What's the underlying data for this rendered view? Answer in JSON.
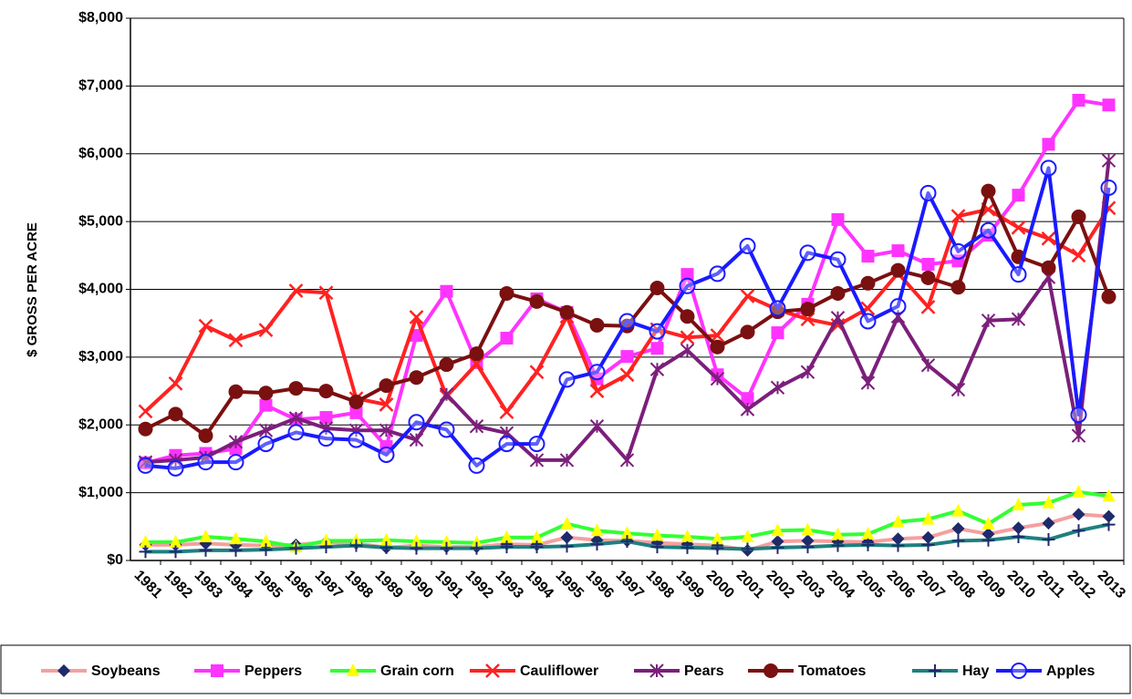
{
  "chart_data": {
    "type": "line",
    "y_label": "$ GROSS PER ACRE",
    "categories": [
      "1981",
      "1982",
      "1983",
      "1984",
      "1985",
      "1986",
      "1987",
      "1988",
      "1989",
      "1990",
      "1991",
      "1992",
      "1993",
      "1994",
      "1995",
      "1996",
      "1997",
      "1998",
      "1999",
      "2000",
      "2001",
      "2002",
      "2003",
      "2004",
      "2005",
      "2006",
      "2007",
      "2008",
      "2009",
      "2010",
      "2011",
      "2012",
      "2013"
    ],
    "ylim": [
      0,
      8000
    ],
    "yticks": [
      {
        "value": 0,
        "label": "$0"
      },
      {
        "value": 1000,
        "label": "$1,000"
      },
      {
        "value": 2000,
        "label": "$2,000"
      },
      {
        "value": 3000,
        "label": "$3,000"
      },
      {
        "value": 4000,
        "label": "$4,000"
      },
      {
        "value": 5000,
        "label": "$5,000"
      },
      {
        "value": 6000,
        "label": "$6,000"
      },
      {
        "value": 7000,
        "label": "$7,000"
      },
      {
        "value": 8000,
        "label": "$8,000"
      }
    ],
    "grid": true,
    "legend": "bottom",
    "series": [
      {
        "name": "Soybeans",
        "color": "#f4a0a0",
        "marker": "diamond",
        "marker_color": "#1f2a6b",
        "values": [
          230,
          230,
          250,
          230,
          220,
          230,
          270,
          250,
          190,
          220,
          200,
          200,
          240,
          230,
          340,
          300,
          290,
          260,
          240,
          220,
          150,
          280,
          290,
          280,
          270,
          320,
          340,
          470,
          390,
          480,
          550,
          680,
          650
        ]
      },
      {
        "name": "Peppers",
        "color": "#ff33ff",
        "marker": "square",
        "marker_color": "#ff33ff",
        "values": [
          1440,
          1550,
          1580,
          1650,
          2290,
          2080,
          2110,
          2180,
          1680,
          3320,
          3970,
          2920,
          3280,
          3860,
          3660,
          2680,
          3010,
          3130,
          4220,
          2740,
          2390,
          3360,
          3780,
          5030,
          4490,
          4570,
          4370,
          4420,
          4800,
          5390,
          6140,
          6790,
          6720
        ]
      },
      {
        "name": "Grain corn",
        "color": "#33ff33",
        "marker": "triangle",
        "marker_color": "#ffff00",
        "values": [
          270,
          270,
          350,
          320,
          280,
          200,
          290,
          290,
          300,
          280,
          270,
          260,
          340,
          340,
          540,
          440,
          400,
          370,
          350,
          320,
          350,
          440,
          450,
          380,
          390,
          570,
          610,
          730,
          540,
          820,
          850,
          1010,
          950
        ]
      },
      {
        "name": "Cauliflower",
        "color": "#ff2222",
        "marker": "x",
        "marker_color": "#ff2222",
        "values": [
          2200,
          2610,
          3460,
          3250,
          3400,
          3980,
          3950,
          2390,
          2300,
          3590,
          2420,
          2900,
          2190,
          2780,
          3600,
          2500,
          2740,
          3410,
          3290,
          3320,
          3900,
          3700,
          3560,
          3470,
          3720,
          4240,
          3740,
          5080,
          5180,
          4910,
          4750,
          4500,
          5200
        ]
      },
      {
        "name": "Pears",
        "color": "#7b1f7b",
        "marker": "star",
        "marker_color": "#7b1f7b",
        "values": [
          1450,
          1480,
          1520,
          1750,
          1920,
          2100,
          1950,
          1920,
          1920,
          1780,
          2450,
          1980,
          1880,
          1480,
          1480,
          1980,
          1480,
          2820,
          3100,
          2680,
          2230,
          2550,
          2780,
          3580,
          2620,
          3600,
          2880,
          2520,
          3540,
          3560,
          4180,
          1840,
          5900
        ]
      },
      {
        "name": "Tomatoes",
        "color": "#7a1010",
        "marker": "circle",
        "marker_color": "#7a1010",
        "values": [
          1940,
          2160,
          1840,
          2490,
          2470,
          2540,
          2500,
          2340,
          2580,
          2700,
          2890,
          3050,
          3940,
          3820,
          3660,
          3470,
          3460,
          4020,
          3600,
          3150,
          3370,
          3670,
          3710,
          3940,
          4090,
          4280,
          4170,
          4030,
          5450,
          4480,
          4320,
          5070,
          3890
        ]
      },
      {
        "name": "Hay",
        "color": "#1f8080",
        "marker": "plus",
        "marker_color": "#1f2a6b",
        "values": [
          130,
          130,
          150,
          150,
          160,
          180,
          200,
          220,
          190,
          180,
          180,
          180,
          200,
          200,
          210,
          240,
          280,
          200,
          190,
          180,
          170,
          190,
          200,
          220,
          230,
          220,
          230,
          290,
          300,
          350,
          310,
          440,
          530
        ]
      },
      {
        "name": "Apples",
        "color": "#1a1aff",
        "marker": "open-circle",
        "marker_color": "#1a1aff",
        "values": [
          1400,
          1360,
          1450,
          1450,
          1720,
          1890,
          1800,
          1780,
          1560,
          2040,
          1930,
          1400,
          1720,
          1720,
          2670,
          2780,
          3530,
          3380,
          4050,
          4230,
          4640,
          3720,
          4540,
          4440,
          3530,
          3750,
          5420,
          4560,
          4870,
          4220,
          5790,
          2150,
          5500
        ]
      }
    ]
  }
}
